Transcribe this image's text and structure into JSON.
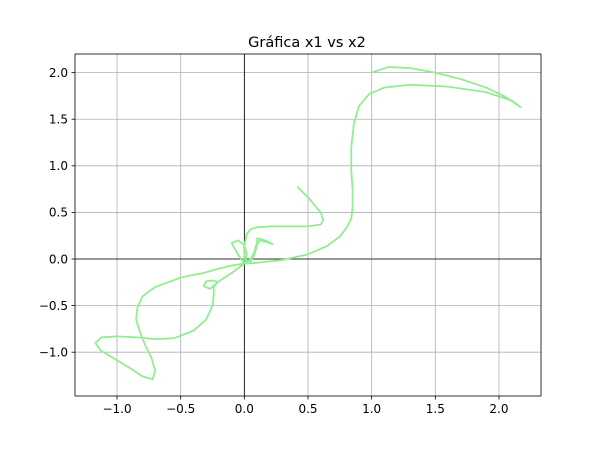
{
  "chart_data": {
    "type": "line",
    "title": "Gráfica x1 vs x2",
    "xlabel": "",
    "ylabel": "",
    "xlim": [
      -1.33,
      2.33
    ],
    "ylim": [
      -1.47,
      2.2
    ],
    "grid": true,
    "reference_lines": {
      "x": 0,
      "y": 0
    },
    "x_ticks": [
      {
        "value": -1.0,
        "label": "−1.0"
      },
      {
        "value": -0.5,
        "label": "−0.5"
      },
      {
        "value": 0.0,
        "label": "0.0"
      },
      {
        "value": 0.5,
        "label": "0.5"
      },
      {
        "value": 1.0,
        "label": "1.0"
      },
      {
        "value": 1.5,
        "label": "1.5"
      },
      {
        "value": 2.0,
        "label": "2.0"
      }
    ],
    "y_ticks": [
      {
        "value": -1.0,
        "label": "−1.0"
      },
      {
        "value": -0.5,
        "label": "−0.5"
      },
      {
        "value": 0.0,
        "label": "0.0"
      },
      {
        "value": 0.5,
        "label": "0.5"
      },
      {
        "value": 1.0,
        "label": "1.0"
      },
      {
        "value": 1.5,
        "label": "1.5"
      },
      {
        "value": 2.0,
        "label": "2.0"
      }
    ],
    "series": [
      {
        "color": "#90ee90",
        "x": [
          1.0,
          1.13,
          1.3,
          1.5,
          1.7,
          1.9,
          2.05,
          2.17,
          2.1,
          1.9,
          1.6,
          1.3,
          1.1,
          0.98,
          0.9,
          0.86,
          0.84,
          0.84,
          0.85,
          0.85,
          0.84,
          0.8,
          0.75,
          0.65,
          0.5,
          0.3,
          0.1,
          0.0,
          -0.1,
          -0.16,
          -0.22,
          -0.27,
          -0.32,
          -0.4,
          -0.5,
          -0.6,
          -0.7,
          -0.8,
          -0.84,
          -0.85,
          -0.82,
          -0.78,
          -0.73,
          -0.7,
          -0.72,
          -0.8,
          -0.9,
          -1.02,
          -1.13,
          -1.17,
          -1.12,
          -1.0,
          -0.85,
          -0.7,
          -0.55,
          -0.4,
          -0.3,
          -0.25,
          -0.24,
          -0.24,
          -0.22,
          -0.22,
          -0.25,
          -0.3,
          -0.32,
          -0.27,
          -0.2,
          -0.1,
          0.0,
          0.02,
          0.0,
          -0.05,
          -0.1,
          -0.05,
          0.0,
          0.05,
          0.08,
          0.1,
          0.1,
          0.12,
          0.18,
          0.22,
          0.18,
          0.12,
          0.1,
          0.08,
          0.05,
          0.0,
          0.0,
          0.02,
          0.05,
          0.1,
          0.2,
          0.35,
          0.5,
          0.6,
          0.62,
          0.6,
          0.55,
          0.5,
          0.42
        ],
        "y": [
          2.0,
          2.06,
          2.05,
          2.0,
          1.93,
          1.84,
          1.74,
          1.63,
          1.7,
          1.79,
          1.85,
          1.87,
          1.84,
          1.77,
          1.64,
          1.45,
          1.2,
          0.95,
          0.75,
          0.55,
          0.43,
          0.33,
          0.24,
          0.14,
          0.05,
          -0.01,
          -0.04,
          -0.05,
          -0.07,
          -0.09,
          -0.11,
          -0.13,
          -0.15,
          -0.17,
          -0.2,
          -0.25,
          -0.3,
          -0.4,
          -0.52,
          -0.65,
          -0.78,
          -0.92,
          -1.06,
          -1.2,
          -1.29,
          -1.26,
          -1.17,
          -1.07,
          -0.98,
          -0.9,
          -0.84,
          -0.83,
          -0.84,
          -0.86,
          -0.85,
          -0.77,
          -0.65,
          -0.5,
          -0.38,
          -0.3,
          -0.26,
          -0.24,
          -0.23,
          -0.24,
          -0.29,
          -0.32,
          -0.24,
          -0.15,
          -0.05,
          0.05,
          0.15,
          0.2,
          0.17,
          0.05,
          -0.05,
          0.0,
          0.08,
          0.18,
          0.22,
          0.22,
          0.19,
          0.16,
          0.18,
          0.2,
          0.15,
          0.05,
          -0.03,
          0.0,
          0.15,
          0.27,
          0.32,
          0.34,
          0.35,
          0.35,
          0.35,
          0.37,
          0.42,
          0.5,
          0.58,
          0.66,
          0.77
        ]
      }
    ]
  }
}
